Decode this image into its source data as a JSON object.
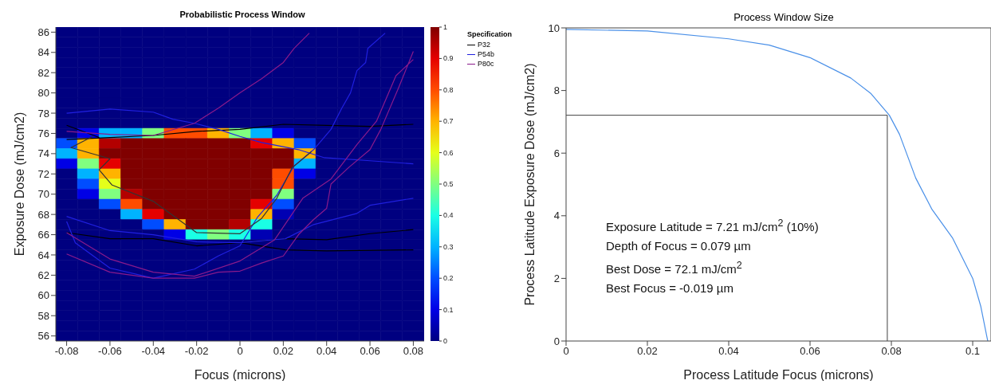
{
  "chart_data": [
    {
      "type": "heatmap",
      "title": "Probabilistic Process Window",
      "xlabel": "Focus (microns)",
      "ylabel": "Exposure Dose (mJ/cm2)",
      "x": [
        -0.08,
        -0.07,
        -0.06,
        -0.05,
        -0.04,
        -0.03,
        -0.02,
        -0.01,
        0,
        0.01,
        0.02,
        0.03,
        0.04,
        0.05,
        0.06,
        0.07,
        0.08
      ],
      "y": [
        86,
        85,
        84,
        83,
        82,
        81,
        80,
        79,
        78,
        77,
        76,
        75,
        74,
        73,
        72,
        71,
        70,
        69,
        68,
        67,
        66,
        65,
        64,
        63,
        62,
        61,
        60,
        59,
        58,
        57,
        56
      ],
      "cells": [
        [
          0,
          0,
          0,
          0,
          0,
          0,
          0,
          0,
          0,
          0,
          0,
          0,
          0,
          0,
          0,
          0,
          0
        ],
        [
          0,
          0,
          0,
          0,
          0,
          0,
          0,
          0,
          0,
          0,
          0,
          0,
          0,
          0,
          0,
          0,
          0
        ],
        [
          0,
          0,
          0,
          0,
          0,
          0,
          0,
          0,
          0,
          0,
          0,
          0,
          0,
          0,
          0,
          0,
          0
        ],
        [
          0,
          0,
          0,
          0,
          0,
          0,
          0,
          0,
          0,
          0,
          0,
          0,
          0,
          0,
          0,
          0,
          0
        ],
        [
          0,
          0,
          0,
          0,
          0,
          0,
          0,
          0,
          0,
          0,
          0,
          0,
          0,
          0,
          0,
          0,
          0
        ],
        [
          0,
          0,
          0,
          0,
          0,
          0,
          0,
          0,
          0,
          0,
          0,
          0,
          0,
          0,
          0,
          0,
          0
        ],
        [
          0,
          0,
          0,
          0,
          0,
          0,
          0,
          0,
          0,
          0,
          0,
          0,
          0,
          0,
          0,
          0,
          0
        ],
        [
          0,
          0,
          0,
          0,
          0,
          0,
          0,
          0,
          0,
          0,
          0,
          0,
          0,
          0,
          0,
          0,
          0
        ],
        [
          0,
          0,
          0,
          0,
          0,
          0,
          0,
          0,
          0,
          0,
          0,
          0,
          0,
          0,
          0,
          0,
          0
        ],
        [
          0,
          0,
          0,
          0,
          0,
          0,
          0,
          0,
          0,
          0,
          0,
          0,
          0,
          0,
          0,
          0,
          0
        ],
        [
          0,
          0.1,
          0.3,
          0.3,
          0.5,
          0.8,
          0.8,
          0.7,
          0.5,
          0.3,
          0.1,
          0,
          0,
          0,
          0,
          0,
          0
        ],
        [
          0.2,
          0.7,
          0.95,
          1,
          1,
          1,
          1,
          1,
          1,
          0.9,
          0.7,
          0.2,
          0,
          0,
          0,
          0,
          0
        ],
        [
          0.3,
          0.7,
          1,
          1,
          1,
          1,
          1,
          1,
          1,
          1,
          1,
          0.7,
          0,
          0,
          0,
          0,
          0
        ],
        [
          0.1,
          0.5,
          0.9,
          1,
          1,
          1,
          1,
          1,
          1,
          1,
          1,
          0.3,
          0,
          0,
          0,
          0,
          0
        ],
        [
          0,
          0.3,
          0.7,
          1,
          1,
          1,
          1,
          1,
          1,
          1,
          0.8,
          0.1,
          0,
          0,
          0,
          0,
          0
        ],
        [
          0,
          0.2,
          0.6,
          1,
          1,
          1,
          1,
          1,
          1,
          1,
          0.8,
          0,
          0,
          0,
          0,
          0,
          0
        ],
        [
          0,
          0.1,
          0.5,
          0.95,
          1,
          1,
          1,
          1,
          1,
          1,
          0.5,
          0,
          0,
          0,
          0,
          0,
          0
        ],
        [
          0,
          0,
          0.2,
          0.8,
          1,
          1,
          1,
          1,
          1,
          0.9,
          0.2,
          0,
          0,
          0,
          0,
          0,
          0
        ],
        [
          0,
          0,
          0,
          0.3,
          0.9,
          1,
          1,
          1,
          1,
          0.7,
          0.05,
          0,
          0,
          0,
          0,
          0,
          0
        ],
        [
          0,
          0,
          0,
          0,
          0.2,
          0.7,
          1,
          1,
          0.95,
          0.4,
          0,
          0,
          0,
          0,
          0,
          0,
          0
        ],
        [
          0,
          0,
          0,
          0,
          0,
          0.1,
          0.4,
          0.5,
          0.4,
          0.05,
          0,
          0,
          0,
          0,
          0,
          0,
          0
        ],
        [
          0,
          0,
          0,
          0,
          0,
          0,
          0,
          0,
          0,
          0,
          0,
          0,
          0,
          0,
          0,
          0,
          0
        ],
        [
          0,
          0,
          0,
          0,
          0,
          0,
          0,
          0,
          0,
          0,
          0,
          0,
          0,
          0,
          0,
          0,
          0
        ],
        [
          0,
          0,
          0,
          0,
          0,
          0,
          0,
          0,
          0,
          0,
          0,
          0,
          0,
          0,
          0,
          0,
          0
        ],
        [
          0,
          0,
          0,
          0,
          0,
          0,
          0,
          0,
          0,
          0,
          0,
          0,
          0,
          0,
          0,
          0,
          0
        ],
        [
          0,
          0,
          0,
          0,
          0,
          0,
          0,
          0,
          0,
          0,
          0,
          0,
          0,
          0,
          0,
          0,
          0
        ],
        [
          0,
          0,
          0,
          0,
          0,
          0,
          0,
          0,
          0,
          0,
          0,
          0,
          0,
          0,
          0,
          0,
          0
        ],
        [
          0,
          0,
          0,
          0,
          0,
          0,
          0,
          0,
          0,
          0,
          0,
          0,
          0,
          0,
          0,
          0,
          0
        ],
        [
          0,
          0,
          0,
          0,
          0,
          0,
          0,
          0,
          0,
          0,
          0,
          0,
          0,
          0,
          0,
          0,
          0
        ],
        [
          0,
          0,
          0,
          0,
          0,
          0,
          0,
          0,
          0,
          0,
          0,
          0,
          0,
          0,
          0,
          0,
          0
        ],
        [
          0,
          0,
          0,
          0,
          0,
          0,
          0,
          0,
          0,
          0,
          0,
          0,
          0,
          0,
          0,
          0,
          0
        ]
      ],
      "clim": [
        0,
        1
      ],
      "cticks": [
        0,
        0.1,
        0.2,
        0.3,
        0.4,
        0.5,
        0.6,
        0.7,
        0.8,
        0.9,
        1
      ],
      "xlim": [
        -0.085,
        0.085
      ],
      "ylim": [
        55.5,
        86.5
      ],
      "xticks": [
        -0.08,
        -0.06,
        -0.04,
        -0.02,
        0,
        0.02,
        0.04,
        0.06,
        0.08
      ],
      "yticks": [
        56,
        58,
        60,
        62,
        64,
        66,
        68,
        70,
        72,
        74,
        76,
        78,
        80,
        82,
        84,
        86
      ],
      "legend": "right",
      "legend_title": "Specification",
      "grid": false,
      "series": [
        {
          "type": "line",
          "name": "P32",
          "color": "#000000",
          "x": [
            -0.08,
            -0.065,
            null,
            -0.08,
            -0.06,
            -0.04,
            -0.02,
            0,
            0.02,
            0.04,
            0.06,
            0.08,
            null,
            -0.08,
            -0.06,
            -0.04,
            -0.02,
            0,
            0.021,
            0.04,
            0.06,
            0.08,
            null,
            0,
            0.021,
            0.04,
            0.08
          ],
          "values": [
            76.8,
            75.6,
            null,
            75.4,
            75.6,
            75.8,
            76.2,
            76.4,
            76.9,
            76.8,
            76.7,
            76.9,
            null,
            66.2,
            65.6,
            65.6,
            64.9,
            65.2,
            65.6,
            65.5,
            66.1,
            66.5,
            null,
            65.2,
            64.5,
            64.4,
            64.5
          ]
        },
        {
          "type": "line",
          "name": "P54b",
          "color": "#2020e0",
          "x": [
            -0.08,
            -0.06,
            -0.04,
            -0.031,
            -0.021,
            -0.01,
            0,
            0.01,
            0.027,
            0.039,
            0.06,
            0.08,
            null,
            -0.08,
            -0.06,
            -0.04,
            -0.02,
            0,
            0.021,
            0.034,
            0.054,
            0.06,
            0.08,
            null,
            -0.08,
            -0.076,
            -0.06,
            -0.04,
            -0.021,
            -0.01,
            0,
            0.008,
            0.017,
            0.025,
            0.034,
            0.042,
            0.047,
            0.051,
            0.054,
            0.058,
            0.059,
            0.067
          ],
          "values": [
            78,
            78.4,
            78.1,
            77.4,
            77,
            76.4,
            75.7,
            75.1,
            74.4,
            73.6,
            73.3,
            73,
            null,
            67.8,
            66.4,
            66,
            65.3,
            65.2,
            65.6,
            67,
            68.1,
            68.9,
            69.6,
            null,
            67.3,
            65.2,
            62.7,
            61.7,
            62.6,
            63.9,
            64.9,
            67.7,
            69.9,
            72.8,
            74.4,
            76.4,
            78.5,
            80,
            82.2,
            83,
            84.4,
            85.9
          ]
        },
        {
          "type": "line",
          "name": "P80c",
          "color": "#8b1a8b",
          "x": [
            -0.08,
            -0.06,
            -0.04,
            -0.021,
            -0.01,
            0,
            0.01,
            0.02,
            0.025,
            0.032,
            null,
            -0.08,
            -0.06,
            -0.04,
            -0.021,
            -0.01,
            0,
            0.01,
            0.02,
            0.027,
            0.034,
            0.04,
            0.042,
            0.05,
            0.06,
            0.065,
            0.073,
            0.08,
            null,
            -0.08,
            -0.06,
            -0.04,
            -0.021,
            0,
            0.016,
            0.029,
            0.042,
            0.054,
            0.063,
            0.072,
            0.08
          ],
          "values": [
            76.2,
            75.9,
            75.8,
            77,
            78.5,
            80,
            81.4,
            83,
            84.4,
            85.9,
            null,
            64.1,
            62.3,
            61.7,
            61.7,
            62.3,
            62.4,
            63.2,
            63.9,
            66,
            67.5,
            68.6,
            71,
            72.6,
            74.4,
            76.4,
            80.4,
            84.1,
            null,
            66.2,
            63.6,
            62.3,
            61.9,
            63.4,
            65.5,
            69.6,
            71.5,
            74.9,
            77.2,
            81.7,
            83.3
          ]
        },
        {
          "type": "line",
          "color": "#333333",
          "x": [
            -0.068,
            -0.078,
            -0.06,
            -0.065,
            -0.059,
            -0.04,
            -0.02,
            0,
            0.01,
            0.017,
            0.024,
            0.033
          ],
          "values": [
            75.7,
            74.6,
            73.5,
            72.4,
            70.9,
            69.3,
            66.2,
            66.1,
            67.6,
            69.6,
            72.6,
            74.2
          ]
        }
      ]
    },
    {
      "type": "line",
      "title": "Process Window Size",
      "xlabel": "Process Latitude Focus (microns)",
      "ylabel": "Process Latitude Exposure Dose (mJ/cm2)",
      "xlim": [
        0,
        0.1045
      ],
      "ylim": [
        0,
        10
      ],
      "xticks": [
        0,
        0.02,
        0.04,
        0.06,
        0.08,
        0.1
      ],
      "yticks": [
        0,
        2,
        4,
        6,
        8,
        10
      ],
      "grid": false,
      "legend": false,
      "series": [
        {
          "color": "#4a90e8",
          "x": [
            0,
            0.02,
            0.04,
            0.05,
            0.06,
            0.07,
            0.075,
            0.0795,
            0.082,
            0.086,
            0.09,
            0.095,
            0.1,
            0.102,
            0.1037
          ],
          "values": [
            9.95,
            9.9,
            9.65,
            9.45,
            9.05,
            8.4,
            7.9,
            7.21,
            6.6,
            5.2,
            4.2,
            3.3,
            2.0,
            1.1,
            0
          ]
        }
      ],
      "ref_lines": [
        {
          "axis": "y",
          "value": 7.21,
          "color": "#404040"
        },
        {
          "axis": "x",
          "value": 0.079,
          "color": "#404040"
        }
      ],
      "annotations": [
        "Exposure Latitude = 7.21 mJ/cm$^{2}$ (10%)",
        "Depth of Focus = 0.079 µm",
        "Best Dose = 72.1 mJ/cm$^{2}$",
        "Best Focus = -0.019 µm"
      ]
    }
  ]
}
